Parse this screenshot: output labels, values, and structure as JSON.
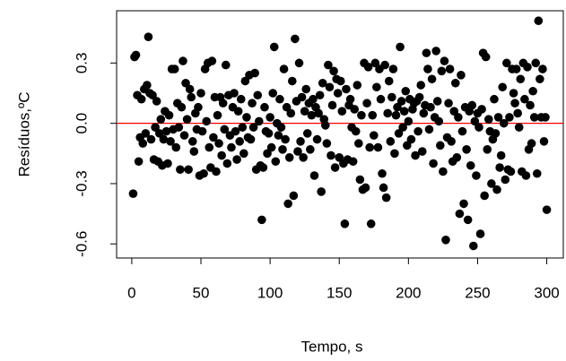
{
  "chart_data": {
    "type": "scatter",
    "x_label": "Tempo, s",
    "y_label": "Resíduos,ºC",
    "xlim": [
      -10.96,
      311.96
    ],
    "ylim": [
      -0.67,
      0.56
    ],
    "xticks": [
      0,
      50,
      100,
      150,
      200,
      250,
      300
    ],
    "yticks": [
      -0.6,
      -0.3,
      {
        "value": 0,
        "label": "0.0"
      },
      0.3
    ],
    "hline": {
      "value": 0,
      "color": "#ff0000"
    },
    "color": "#000000",
    "x": [
      1,
      2,
      3,
      4,
      5,
      6,
      7,
      8,
      9,
      10,
      11,
      12,
      13,
      14,
      15,
      16,
      17,
      18,
      19,
      20,
      21,
      22,
      23,
      24,
      25,
      26,
      27,
      28,
      29,
      30,
      31,
      32,
      33,
      34,
      35,
      36,
      37,
      38,
      39,
      40,
      41,
      42,
      43,
      44,
      45,
      46,
      47,
      48,
      49,
      50,
      51,
      52,
      53,
      54,
      55,
      56,
      57,
      58,
      59,
      60,
      61,
      62,
      63,
      64,
      65,
      66,
      67,
      68,
      69,
      70,
      71,
      72,
      73,
      74,
      75,
      76,
      77,
      78,
      79,
      80,
      81,
      82,
      83,
      84,
      85,
      86,
      87,
      88,
      89,
      90,
      91,
      92,
      93,
      94,
      95,
      96,
      97,
      98,
      99,
      100,
      101,
      102,
      103,
      104,
      105,
      106,
      107,
      108,
      109,
      110,
      111,
      112,
      113,
      114,
      115,
      116,
      117,
      118,
      119,
      120,
      121,
      122,
      123,
      124,
      125,
      126,
      127,
      128,
      129,
      130,
      131,
      132,
      133,
      134,
      135,
      136,
      137,
      138,
      139,
      140,
      141,
      142,
      143,
      144,
      145,
      146,
      147,
      148,
      149,
      150,
      151,
      152,
      153,
      154,
      155,
      156,
      157,
      158,
      159,
      160,
      161,
      162,
      163,
      164,
      165,
      166,
      167,
      168,
      169,
      170,
      171,
      172,
      173,
      174,
      175,
      176,
      177,
      178,
      179,
      180,
      181,
      182,
      183,
      184,
      185,
      186,
      187,
      188,
      189,
      190,
      191,
      192,
      193,
      194,
      195,
      196,
      197,
      198,
      199,
      200,
      201,
      202,
      203,
      204,
      205,
      206,
      207,
      208,
      209,
      210,
      211,
      212,
      213,
      214,
      215,
      216,
      217,
      218,
      219,
      220,
      221,
      222,
      223,
      224,
      225,
      226,
      227,
      228,
      229,
      230,
      231,
      232,
      233,
      234,
      235,
      236,
      237,
      238,
      239,
      240,
      241,
      242,
      243,
      244,
      245,
      246,
      247,
      248,
      249,
      250,
      251,
      252,
      253,
      254,
      255,
      256,
      257,
      258,
      259,
      260,
      261,
      262,
      263,
      264,
      265,
      266,
      267,
      268,
      269,
      270,
      271,
      272,
      273,
      274,
      275,
      276,
      277,
      278,
      279,
      280,
      281,
      282,
      283,
      284,
      285,
      286,
      287,
      288,
      289,
      290,
      291,
      292,
      293,
      294,
      295,
      296,
      297,
      298,
      299,
      300
    ],
    "values": [
      -0.35,
      0.33,
      0.34,
      0.14,
      -0.19,
      -0.07,
      0.12,
      -0.1,
      0.17,
      -0.05,
      0.19,
      0.43,
      0.15,
      -0.08,
      0.14,
      -0.18,
      -0.02,
      0.11,
      -0.19,
      -0.05,
      0.02,
      -0.21,
      -0.08,
      0.06,
      -0.04,
      -0.2,
      0.04,
      -0.09,
      0.27,
      -0.03,
      0.27,
      -0.12,
      0.1,
      -0.02,
      -0.23,
      0.08,
      0.31,
      -0.06,
      0.2,
      0.02,
      -0.23,
      0.17,
      0.13,
      -0.09,
      -0.14,
      0.05,
      -0.03,
      0.08,
      -0.26,
      0.15,
      -0.04,
      -0.25,
      0.27,
      0.01,
      0.3,
      -0.12,
      -0.22,
      0.31,
      -0.07,
      0.13,
      -0.24,
      0.04,
      -0.1,
      0.13,
      -0.16,
      0.1,
      -0.03,
      0.29,
      -0.2,
      0.14,
      -0.06,
      -0.12,
      0.08,
      0.15,
      -0.04,
      -0.18,
      0.06,
      -0.09,
      0.12,
      -0.02,
      -0.15,
      0.21,
      0.03,
      -0.07,
      0.24,
      -0.08,
      0.1,
      -0.02,
      0.25,
      -0.23,
      0.14,
      0.01,
      -0.21,
      -0.48,
      -0.22,
      0.08,
      -0.04,
      -0.15,
      -0.05,
      0.03,
      -0.12,
      0.15,
      0.38,
      -0.19,
      0.0,
      -0.06,
      0.12,
      -0.02,
      -0.13,
      0.27,
      -0.08,
      0.08,
      -0.4,
      -0.17,
      0.05,
      0.21,
      -0.36,
      0.42,
      0.11,
      -0.14,
      0.3,
      -0.09,
      0.13,
      -0.17,
      0.06,
      0.17,
      -0.05,
      0.1,
      -0.13,
      0.04,
      0.12,
      -0.26,
      0.08,
      -0.08,
      0.05,
      0.14,
      -0.34,
      0.2,
      0.02,
      -0.01,
      -0.1,
      0.29,
      0.18,
      -0.16,
      0.09,
      0.26,
      -0.22,
      0.22,
      0.15,
      -0.17,
      0.21,
      0.06,
      -0.2,
      -0.5,
      0.17,
      -0.18,
      0.09,
      0.12,
      -0.02,
      -0.19,
      0.07,
      -0.04,
      0.19,
      -0.1,
      -0.28,
      0.04,
      -0.33,
      0.3,
      -0.32,
      0.1,
      0.28,
      -0.12,
      -0.5,
      0.04,
      -0.06,
      0.3,
      0.18,
      -0.12,
      0.27,
      0.12,
      -0.25,
      -0.32,
      0.29,
      -0.37,
      0.05,
      0.21,
      -0.09,
      0.13,
      0.27,
      -0.15,
      0.04,
      0.08,
      -0.05,
      0.38,
      0.11,
      -0.02,
      0.06,
      0.16,
      -0.11,
      0.01,
      0.12,
      -0.08,
      0.07,
      0.1,
      -0.16,
      0.11,
      -0.04,
      0.13,
      0.19,
      -0.14,
      0.05,
      0.09,
      0.35,
      0.27,
      -0.03,
      0.08,
      0.22,
      -0.2,
      0.03,
      0.36,
      0.11,
      0.01,
      -0.11,
      0.26,
      -0.24,
      0.31,
      -0.58,
      -0.07,
      0.1,
      0.27,
      -0.09,
      -0.19,
      0.06,
      0.2,
      -0.17,
      0.03,
      -0.45,
      0.24,
      -0.04,
      -0.4,
      0.08,
      -0.13,
      -0.48,
      0.06,
      -0.21,
      0.09,
      -0.61,
      0.01,
      -0.26,
      0.05,
      -0.02,
      -0.55,
      0.07,
      0.35,
      -0.36,
      0.33,
      -0.13,
      0.02,
      -0.04,
      -0.3,
      -0.08,
      0.12,
      -0.05,
      -0.33,
      0.03,
      -0.22,
      -0.16,
      0.18,
      0.0,
      -0.28,
      0.3,
      -0.23,
      0.03,
      -0.24,
      0.27,
      0.15,
      0.1,
      0.27,
      0.05,
      -0.02,
      0.22,
      -0.24,
      0.3,
      0.12,
      -0.26,
      0.28,
      -0.13,
      0.09,
      -0.1,
      0.16,
      0.03,
      0.3,
      -0.25,
      0.51,
      0.22,
      0.03,
      0.27,
      -0.09,
      0.03,
      -0.43
    ]
  }
}
